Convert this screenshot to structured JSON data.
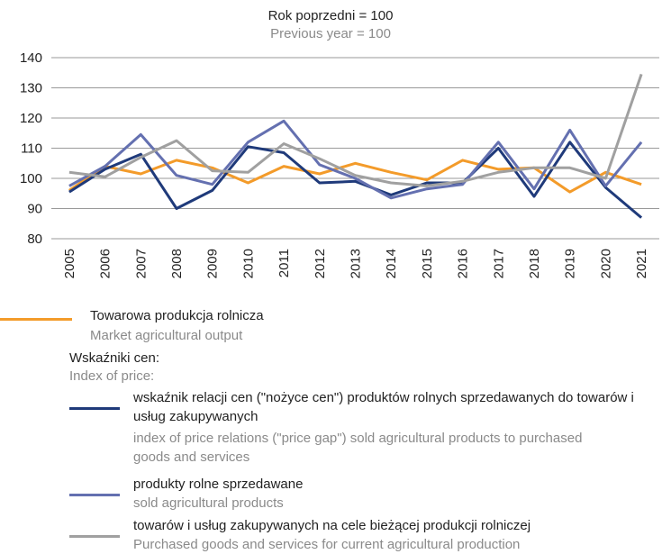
{
  "chart_data": {
    "type": "line",
    "title": "Rok poprzedni = 100",
    "subtitle": "Previous year = 100",
    "categories": [
      "2005",
      "2006",
      "2007",
      "2008",
      "2009",
      "2010",
      "2011",
      "2012",
      "2013",
      "2014",
      "2015",
      "2016",
      "2017",
      "2018",
      "2019",
      "2020",
      "2021"
    ],
    "series": [
      {
        "name": "Towarowa produkcja rolnicza",
        "name_en": "Market agricultural output",
        "color": "#f39b2a",
        "values": [
          96,
          104,
          101.5,
          106,
          103.5,
          98.5,
          104,
          101.5,
          105,
          102,
          99.5,
          106,
          103,
          103.5,
          95.5,
          102,
          98
        ]
      },
      {
        "name": "wskaźnik relacji cen (\"nożyce cen\") produktów rolnych sprzedawanych do towarów i usług zakupywanych",
        "name_en": "index of price relations (\"price gap\") sold agricultural products to purchased goods and services",
        "color": "#1f3a7a",
        "values": [
          95.5,
          103,
          108,
          90,
          96,
          110.5,
          108.5,
          98.5,
          99,
          94.5,
          98.5,
          98.5,
          110,
          94,
          112,
          97,
          87
        ]
      },
      {
        "name": "produkty rolne sprzedawane",
        "name_en": "sold agricultural products",
        "color": "#6470b0",
        "values": [
          97.5,
          104,
          114.5,
          101,
          98,
          112,
          119,
          104.5,
          100,
          93.5,
          96.5,
          98,
          112,
          96.5,
          116,
          97.5,
          112
        ]
      },
      {
        "name": "towarów i usług zakupywanych na cele bieżącej produkcji rolniczej",
        "name_en": "Purchased goods and services for current agricultural production",
        "color": "#a0a0a0",
        "values": [
          102,
          100.5,
          107,
          112.5,
          102.5,
          102,
          111.5,
          106.5,
          101,
          98.5,
          97.5,
          99,
          102,
          103.5,
          103.5,
          100,
          134.5
        ]
      }
    ],
    "legend_heading": {
      "text": "Wskaźniki cen:",
      "text_en": "Index of price:"
    },
    "ylim": [
      80,
      140
    ],
    "yticks": [
      80,
      90,
      100,
      110,
      120,
      130,
      140
    ],
    "grid": true
  }
}
